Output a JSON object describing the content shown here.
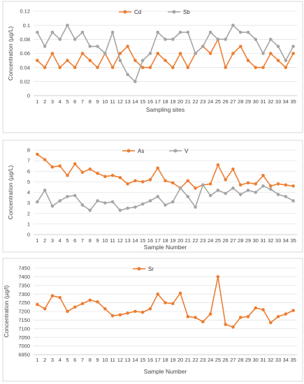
{
  "colors": {
    "orange": "#ED7D31",
    "gray": "#A5A5A5"
  },
  "chart_data": [
    {
      "type": "line",
      "xlabel": "Sampling sites",
      "ylabel": "Concentration (µg/L)",
      "ylim": [
        0,
        0.12
      ],
      "yticks": [
        0,
        0.02,
        0.04,
        0.06,
        0.08,
        0.1,
        0.12
      ],
      "ytick_labels": [
        "0",
        "0.02",
        "0.04",
        "0.06",
        "0.08",
        "0.1",
        "0.12"
      ],
      "categories": [
        "1",
        "2",
        "3",
        "4",
        "5",
        "6",
        "7",
        "8",
        "9",
        "10",
        "11",
        "12",
        "13",
        "14",
        "15",
        "16",
        "17",
        "18",
        "19",
        "20",
        "21",
        "22",
        "23",
        "24",
        "25",
        "26",
        "27",
        "28",
        "29",
        "30",
        "31",
        "32",
        "33",
        "34",
        "35"
      ],
      "grid": true,
      "legend": "top",
      "series": [
        {
          "name": "Cd",
          "color": "#ED7D31",
          "values": [
            0.05,
            0.04,
            0.06,
            0.04,
            0.05,
            0.04,
            0.06,
            0.05,
            0.04,
            0.06,
            0.04,
            0.06,
            0.07,
            0.05,
            0.04,
            0.04,
            0.06,
            0.05,
            0.04,
            0.06,
            0.04,
            0.06,
            0.07,
            0.06,
            0.08,
            0.04,
            0.06,
            0.07,
            0.05,
            0.04,
            0.04,
            0.06,
            0.05,
            0.04,
            0.06
          ]
        },
        {
          "name": "Sb",
          "color": "#A5A5A5",
          "values": [
            0.09,
            0.07,
            0.09,
            0.08,
            0.1,
            0.08,
            0.09,
            0.07,
            0.07,
            0.06,
            0.09,
            0.05,
            0.03,
            0.02,
            0.05,
            0.06,
            0.09,
            0.08,
            0.08,
            0.09,
            0.09,
            0.06,
            0.07,
            0.09,
            0.08,
            0.08,
            0.1,
            0.09,
            0.09,
            0.08,
            0.06,
            0.08,
            0.07,
            0.05,
            0.07
          ]
        }
      ]
    },
    {
      "type": "line",
      "xlabel": "Sample Number",
      "ylabel": "Concentration (µg/L)",
      "ylim": [
        0,
        8
      ],
      "yticks": [
        0,
        1,
        2,
        3,
        4,
        5,
        6,
        7,
        8
      ],
      "ytick_labels": [
        "0",
        "1",
        "2",
        "3",
        "4",
        "5",
        "6",
        "7",
        "8"
      ],
      "categories": [
        "1",
        "2",
        "3",
        "4",
        "5",
        "6",
        "7",
        "8",
        "9",
        "10",
        "11",
        "12",
        "13",
        "14",
        "15",
        "16",
        "17",
        "18",
        "19",
        "20",
        "21",
        "22",
        "23",
        "24",
        "25",
        "26",
        "27",
        "28",
        "29",
        "30",
        "31",
        "32",
        "33",
        "34",
        "35"
      ],
      "grid": true,
      "legend": "top",
      "series": [
        {
          "name": "As",
          "color": "#ED7D31",
          "values": [
            7.6,
            7.1,
            6.4,
            6.5,
            5.6,
            6.7,
            5.9,
            6.2,
            5.8,
            5.5,
            5.6,
            5.4,
            4.8,
            5.1,
            5.0,
            5.2,
            6.3,
            5.1,
            4.9,
            4.4,
            5.1,
            4.4,
            4.7,
            4.8,
            6.6,
            5.2,
            6.2,
            4.7,
            4.9,
            4.8,
            5.6,
            4.6,
            4.8,
            4.7,
            4.6
          ]
        },
        {
          "name": "V",
          "color": "#A5A5A5",
          "values": [
            3.1,
            4.2,
            2.7,
            3.2,
            3.6,
            3.7,
            2.8,
            2.3,
            3.2,
            3.0,
            3.1,
            2.3,
            2.5,
            2.6,
            2.9,
            3.2,
            3.6,
            2.8,
            3.1,
            4.4,
            3.6,
            2.6,
            4.7,
            3.7,
            4.2,
            3.9,
            4.4,
            3.8,
            4.2,
            4.0,
            4.6,
            4.3,
            3.8,
            3.6,
            3.2
          ]
        }
      ]
    },
    {
      "type": "line",
      "xlabel": "Sample Number",
      "ylabel": "Concentration (µg/l)",
      "ylim": [
        6950,
        7450
      ],
      "yticks": [
        6950,
        7000,
        7050,
        7100,
        7150,
        7200,
        7250,
        7300,
        7350,
        7400,
        7450
      ],
      "ytick_labels": [
        "6950",
        "7000",
        "7050",
        "7100",
        "7150",
        "7200",
        "7250",
        "7300",
        "7350",
        "7400",
        "7450"
      ],
      "categories": [
        "1",
        "2",
        "3",
        "4",
        "5",
        "6",
        "7",
        "8",
        "9",
        "10",
        "11",
        "12",
        "13",
        "14",
        "15",
        "16",
        "17",
        "18",
        "19",
        "20",
        "21",
        "22",
        "23",
        "24",
        "25",
        "26",
        "27",
        "28",
        "29",
        "30",
        "31",
        "32",
        "33",
        "34",
        "35"
      ],
      "grid": true,
      "legend": "top",
      "series": [
        {
          "name": "Sr",
          "color": "#ED7D31",
          "values": [
            7240,
            7215,
            7290,
            7280,
            7200,
            7225,
            7245,
            7265,
            7255,
            7215,
            7175,
            7180,
            7190,
            7200,
            7195,
            7215,
            7300,
            7250,
            7245,
            7305,
            7170,
            7165,
            7140,
            7185,
            7400,
            7125,
            7110,
            7165,
            7170,
            7220,
            7210,
            7135,
            7170,
            7185,
            7205
          ]
        }
      ]
    }
  ]
}
